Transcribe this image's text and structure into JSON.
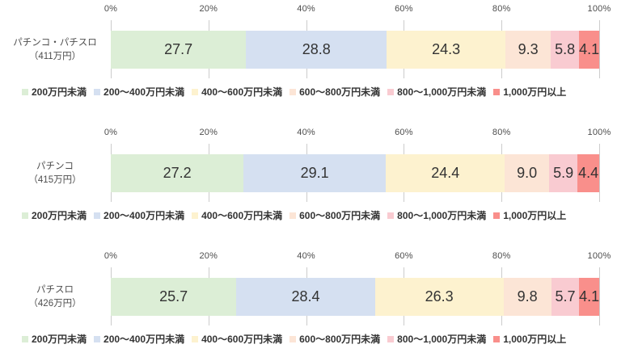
{
  "colors": {
    "background": "#ffffff",
    "gridline": "#cccccc",
    "axis_text": "#4d4d4d",
    "value_text": "#333333",
    "legend_text": "#333333"
  },
  "category_labels": [
    {
      "line1": "パチンコ・パチスロ",
      "line2": "（411万円）"
    },
    {
      "line1": "パチンコ",
      "line2": "（415万円）"
    },
    {
      "line1": "パチスロ",
      "line2": "（426万円）"
    }
  ],
  "chart_data": {
    "type": "bar",
    "orientation": "horizontal-stacked",
    "title": "",
    "categories": [
      "パチンコ・パチスロ（411万円）",
      "パチンコ（415万円）",
      "パチスロ（426万円）"
    ],
    "series": [
      {
        "name": "200万円未満",
        "color": "#dceed6",
        "values": [
          27.7,
          27.2,
          25.7
        ]
      },
      {
        "name": "200～400万円未満",
        "color": "#d5e0f1",
        "values": [
          28.8,
          29.1,
          28.4
        ]
      },
      {
        "name": "400～600万円未満",
        "color": "#fdf2cf",
        "values": [
          24.3,
          24.4,
          26.3
        ]
      },
      {
        "name": "600～800万円未満",
        "color": "#fce5d6",
        "values": [
          9.3,
          9.0,
          9.8
        ]
      },
      {
        "name": "800～1,000万円未満",
        "color": "#f9cbd1",
        "values": [
          5.8,
          5.9,
          5.7
        ]
      },
      {
        "name": "1,000万円以上",
        "color": "#f98f8b",
        "values": [
          4.1,
          4.4,
          4.1
        ]
      }
    ],
    "xlim": [
      0,
      100
    ],
    "x_ticks": [
      "0%",
      "20%",
      "40%",
      "60%",
      "80%",
      "100%"
    ],
    "x_tick_values": [
      0,
      20,
      40,
      60,
      80,
      100
    ],
    "value_decimals": 1,
    "grid": true,
    "legend_position": "bottom-of-each-chart"
  }
}
